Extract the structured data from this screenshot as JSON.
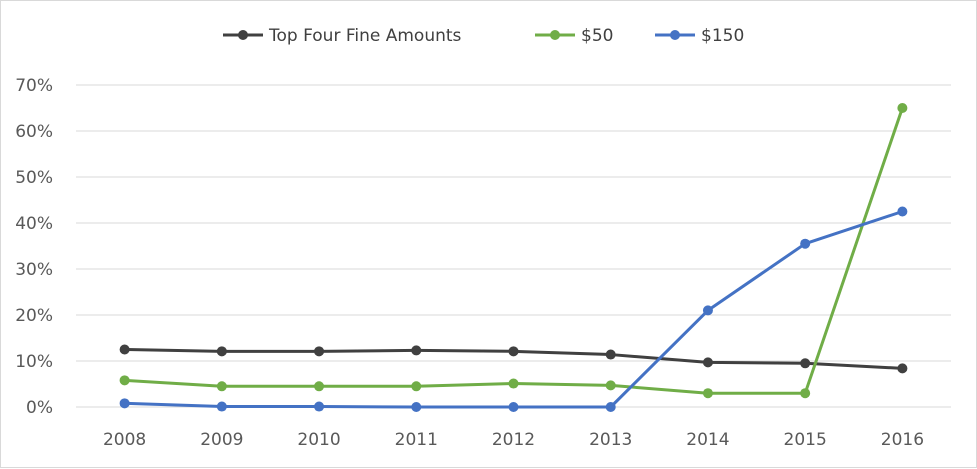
{
  "chart_data": {
    "type": "line",
    "title": "",
    "xlabel": "",
    "ylabel": "",
    "categories": [
      "2008",
      "2009",
      "2010",
      "2011",
      "2012",
      "2013",
      "2014",
      "2015",
      "2016"
    ],
    "ylim": [
      0,
      70
    ],
    "y_ticks": [
      "0%",
      "10%",
      "20%",
      "30%",
      "40%",
      "50%",
      "60%",
      "70%"
    ],
    "y_tick_values": [
      0,
      10,
      20,
      30,
      40,
      50,
      60,
      70
    ],
    "grid": "horizontal",
    "legend_position": "top-center",
    "series": [
      {
        "name": "Top Four Fine Amounts",
        "color": "#404040",
        "values": [
          12.5,
          12.1,
          12.1,
          12.3,
          12.1,
          11.4,
          9.7,
          9.5,
          8.4
        ]
      },
      {
        "name": "$50",
        "color": "#70ad47",
        "values": [
          5.8,
          4.5,
          4.5,
          4.5,
          5.1,
          4.7,
          3.0,
          3.0,
          65.0
        ]
      },
      {
        "name": "$150",
        "color": "#4472c4",
        "values": [
          0.8,
          0.1,
          0.1,
          0.0,
          0.0,
          0.0,
          21.0,
          35.5,
          42.5
        ]
      }
    ]
  }
}
